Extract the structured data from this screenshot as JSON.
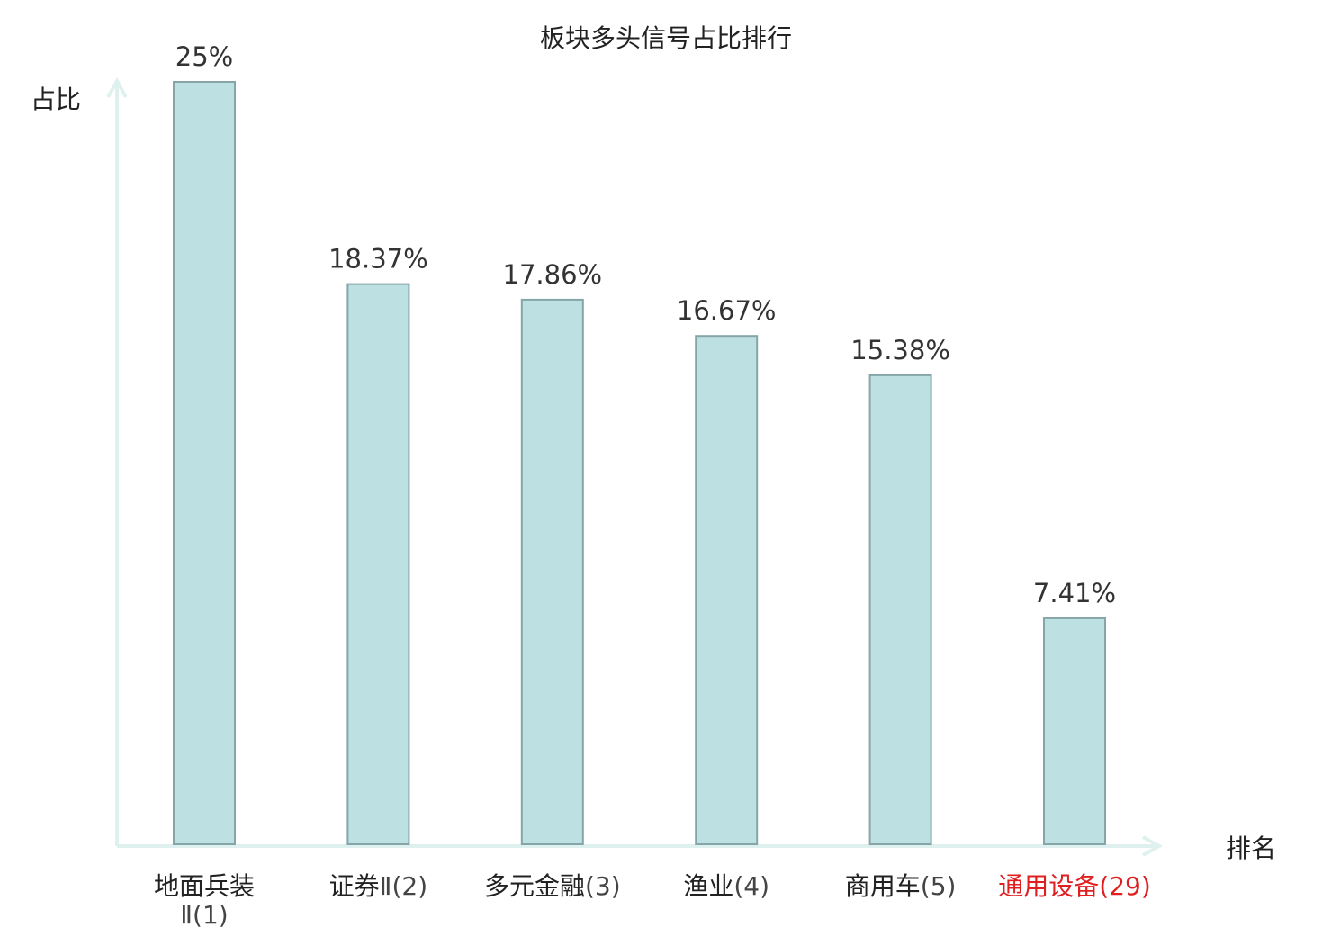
{
  "chart_data": {
    "type": "bar",
    "title": "板块多头信号占比排行",
    "ylabel": "占比",
    "xlabel": "排名",
    "ylim": [
      0,
      25
    ],
    "grid": false,
    "legend": "none",
    "categories": [
      {
        "name": "地面兵装",
        "rank": "Ⅱ(1)",
        "highlight": false
      },
      {
        "name": "证券",
        "rank": "Ⅱ(2)",
        "highlight": false
      },
      {
        "name": "多元金融",
        "rank": "(3)",
        "highlight": false
      },
      {
        "name": "渔业",
        "rank": "(4)",
        "highlight": false
      },
      {
        "name": "商用车",
        "rank": "(5)",
        "highlight": false
      },
      {
        "name": "通用设备",
        "rank": "(29)",
        "highlight": true
      }
    ],
    "values": [
      25,
      18.37,
      17.86,
      16.67,
      15.38,
      7.41
    ],
    "value_labels": [
      "25%",
      "18.37%",
      "17.86%",
      "16.67%",
      "15.38%",
      "7.41%"
    ]
  },
  "colors": {
    "bar_fill": "#bde0e3",
    "bar_stroke": "#85a5a8",
    "axis": "#dff1ef",
    "label": "#222222",
    "rank": "#444444",
    "highlight": "#e02020"
  }
}
